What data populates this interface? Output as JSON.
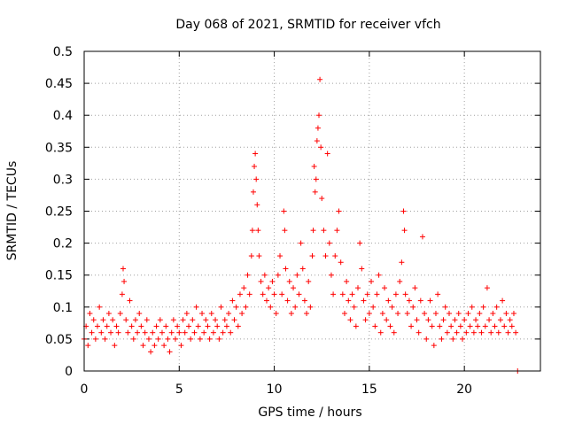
{
  "chart_data": {
    "type": "scatter",
    "title": "Day 068 of 2021, SRMTID for receiver vfch",
    "xlabel": "GPS time / hours",
    "ylabel": "SRMTID / TECUs",
    "xlim": [
      0,
      24
    ],
    "ylim": [
      0,
      0.5
    ],
    "grid": true,
    "marker": "+",
    "color": "#ff0000",
    "xticks": [
      0,
      5,
      10,
      15,
      20
    ],
    "xtick_labels": [
      "0",
      "5",
      "10",
      "15",
      "20"
    ],
    "yticks": [
      0,
      0.05,
      0.1,
      0.15,
      0.2,
      0.25,
      0.3,
      0.35,
      0.4,
      0.45,
      0.5
    ],
    "ytick_labels": [
      "0",
      "0.05",
      "0.1",
      "0.15",
      "0.2",
      "0.25",
      "0.3",
      "0.35",
      "0.4",
      "0.45",
      "0.5"
    ],
    "series": [
      {
        "name": "SRMTID",
        "points": [
          [
            0.0,
            0.05
          ],
          [
            0.1,
            0.07
          ],
          [
            0.2,
            0.04
          ],
          [
            0.3,
            0.09
          ],
          [
            0.4,
            0.06
          ],
          [
            0.5,
            0.08
          ],
          [
            0.6,
            0.05
          ],
          [
            0.7,
            0.07
          ],
          [
            0.8,
            0.1
          ],
          [
            0.9,
            0.06
          ],
          [
            1.0,
            0.08
          ],
          [
            1.1,
            0.05
          ],
          [
            1.2,
            0.07
          ],
          [
            1.3,
            0.09
          ],
          [
            1.4,
            0.06
          ],
          [
            1.5,
            0.08
          ],
          [
            1.6,
            0.04
          ],
          [
            1.7,
            0.07
          ],
          [
            1.8,
            0.06
          ],
          [
            1.9,
            0.09
          ],
          [
            2.0,
            0.12
          ],
          [
            2.05,
            0.16
          ],
          [
            2.1,
            0.14
          ],
          [
            2.2,
            0.08
          ],
          [
            2.3,
            0.06
          ],
          [
            2.4,
            0.11
          ],
          [
            2.5,
            0.07
          ],
          [
            2.6,
            0.05
          ],
          [
            2.7,
            0.08
          ],
          [
            2.8,
            0.06
          ],
          [
            2.9,
            0.09
          ],
          [
            3.0,
            0.07
          ],
          [
            3.1,
            0.04
          ],
          [
            3.2,
            0.06
          ],
          [
            3.3,
            0.08
          ],
          [
            3.4,
            0.05
          ],
          [
            3.5,
            0.03
          ],
          [
            3.6,
            0.06
          ],
          [
            3.7,
            0.04
          ],
          [
            3.8,
            0.07
          ],
          [
            3.9,
            0.05
          ],
          [
            4.0,
            0.08
          ],
          [
            4.1,
            0.06
          ],
          [
            4.2,
            0.04
          ],
          [
            4.3,
            0.07
          ],
          [
            4.4,
            0.05
          ],
          [
            4.5,
            0.03
          ],
          [
            4.6,
            0.06
          ],
          [
            4.7,
            0.08
          ],
          [
            4.8,
            0.05
          ],
          [
            4.9,
            0.07
          ],
          [
            5.0,
            0.06
          ],
          [
            5.1,
            0.04
          ],
          [
            5.2,
            0.08
          ],
          [
            5.3,
            0.06
          ],
          [
            5.4,
            0.09
          ],
          [
            5.5,
            0.07
          ],
          [
            5.6,
            0.05
          ],
          [
            5.7,
            0.08
          ],
          [
            5.8,
            0.06
          ],
          [
            5.9,
            0.1
          ],
          [
            6.0,
            0.07
          ],
          [
            6.1,
            0.05
          ],
          [
            6.2,
            0.09
          ],
          [
            6.3,
            0.06
          ],
          [
            6.4,
            0.08
          ],
          [
            6.5,
            0.07
          ],
          [
            6.6,
            0.05
          ],
          [
            6.7,
            0.09
          ],
          [
            6.8,
            0.06
          ],
          [
            6.9,
            0.08
          ],
          [
            7.0,
            0.07
          ],
          [
            7.1,
            0.05
          ],
          [
            7.2,
            0.1
          ],
          [
            7.3,
            0.06
          ],
          [
            7.4,
            0.08
          ],
          [
            7.5,
            0.07
          ],
          [
            7.6,
            0.09
          ],
          [
            7.7,
            0.06
          ],
          [
            7.8,
            0.11
          ],
          [
            7.9,
            0.08
          ],
          [
            8.0,
            0.1
          ],
          [
            8.1,
            0.07
          ],
          [
            8.2,
            0.12
          ],
          [
            8.3,
            0.09
          ],
          [
            8.4,
            0.13
          ],
          [
            8.5,
            0.1
          ],
          [
            8.6,
            0.15
          ],
          [
            8.7,
            0.12
          ],
          [
            8.8,
            0.18
          ],
          [
            8.85,
            0.22
          ],
          [
            8.9,
            0.28
          ],
          [
            8.95,
            0.32
          ],
          [
            9.0,
            0.34
          ],
          [
            9.05,
            0.3
          ],
          [
            9.1,
            0.26
          ],
          [
            9.15,
            0.22
          ],
          [
            9.2,
            0.18
          ],
          [
            9.3,
            0.14
          ],
          [
            9.4,
            0.12
          ],
          [
            9.5,
            0.15
          ],
          [
            9.6,
            0.11
          ],
          [
            9.7,
            0.13
          ],
          [
            9.8,
            0.1
          ],
          [
            9.9,
            0.14
          ],
          [
            10.0,
            0.12
          ],
          [
            10.1,
            0.09
          ],
          [
            10.2,
            0.15
          ],
          [
            10.3,
            0.18
          ],
          [
            10.4,
            0.12
          ],
          [
            10.5,
            0.25
          ],
          [
            10.55,
            0.22
          ],
          [
            10.6,
            0.16
          ],
          [
            10.7,
            0.11
          ],
          [
            10.8,
            0.14
          ],
          [
            10.9,
            0.09
          ],
          [
            11.0,
            0.13
          ],
          [
            11.1,
            0.1
          ],
          [
            11.2,
            0.15
          ],
          [
            11.3,
            0.12
          ],
          [
            11.4,
            0.2
          ],
          [
            11.5,
            0.16
          ],
          [
            11.6,
            0.11
          ],
          [
            11.7,
            0.09
          ],
          [
            11.8,
            0.14
          ],
          [
            11.9,
            0.1
          ],
          [
            12.0,
            0.18
          ],
          [
            12.05,
            0.22
          ],
          [
            12.1,
            0.32
          ],
          [
            12.15,
            0.28
          ],
          [
            12.2,
            0.3
          ],
          [
            12.25,
            0.36
          ],
          [
            12.3,
            0.38
          ],
          [
            12.35,
            0.4
          ],
          [
            12.4,
            0.456
          ],
          [
            12.45,
            0.35
          ],
          [
            12.5,
            0.27
          ],
          [
            12.6,
            0.22
          ],
          [
            12.7,
            0.18
          ],
          [
            12.8,
            0.34
          ],
          [
            12.9,
            0.2
          ],
          [
            13.0,
            0.15
          ],
          [
            13.1,
            0.12
          ],
          [
            13.2,
            0.18
          ],
          [
            13.3,
            0.22
          ],
          [
            13.4,
            0.25
          ],
          [
            13.5,
            0.17
          ],
          [
            13.6,
            0.12
          ],
          [
            13.7,
            0.09
          ],
          [
            13.8,
            0.14
          ],
          [
            13.9,
            0.11
          ],
          [
            14.0,
            0.08
          ],
          [
            14.1,
            0.12
          ],
          [
            14.2,
            0.1
          ],
          [
            14.3,
            0.07
          ],
          [
            14.4,
            0.13
          ],
          [
            14.5,
            0.2
          ],
          [
            14.6,
            0.16
          ],
          [
            14.7,
            0.11
          ],
          [
            14.8,
            0.08
          ],
          [
            14.9,
            0.12
          ],
          [
            15.0,
            0.09
          ],
          [
            15.1,
            0.14
          ],
          [
            15.2,
            0.1
          ],
          [
            15.3,
            0.07
          ],
          [
            15.4,
            0.12
          ],
          [
            15.5,
            0.15
          ],
          [
            15.6,
            0.06
          ],
          [
            15.7,
            0.09
          ],
          [
            15.8,
            0.13
          ],
          [
            15.9,
            0.08
          ],
          [
            16.0,
            0.11
          ],
          [
            16.1,
            0.07
          ],
          [
            16.2,
            0.1
          ],
          [
            16.3,
            0.06
          ],
          [
            16.4,
            0.12
          ],
          [
            16.5,
            0.09
          ],
          [
            16.6,
            0.14
          ],
          [
            16.7,
            0.17
          ],
          [
            16.8,
            0.25
          ],
          [
            16.85,
            0.22
          ],
          [
            16.9,
            0.12
          ],
          [
            17.0,
            0.09
          ],
          [
            17.1,
            0.11
          ],
          [
            17.2,
            0.07
          ],
          [
            17.3,
            0.1
          ],
          [
            17.4,
            0.13
          ],
          [
            17.5,
            0.08
          ],
          [
            17.6,
            0.06
          ],
          [
            17.7,
            0.11
          ],
          [
            17.8,
            0.21
          ],
          [
            17.9,
            0.09
          ],
          [
            18.0,
            0.05
          ],
          [
            18.1,
            0.08
          ],
          [
            18.2,
            0.11
          ],
          [
            18.3,
            0.07
          ],
          [
            18.4,
            0.04
          ],
          [
            18.5,
            0.09
          ],
          [
            18.6,
            0.12
          ],
          [
            18.7,
            0.07
          ],
          [
            18.8,
            0.05
          ],
          [
            18.9,
            0.08
          ],
          [
            19.0,
            0.1
          ],
          [
            19.1,
            0.06
          ],
          [
            19.2,
            0.09
          ],
          [
            19.3,
            0.07
          ],
          [
            19.4,
            0.05
          ],
          [
            19.5,
            0.08
          ],
          [
            19.6,
            0.06
          ],
          [
            19.7,
            0.09
          ],
          [
            19.8,
            0.07
          ],
          [
            19.9,
            0.05
          ],
          [
            20.0,
            0.08
          ],
          [
            20.1,
            0.06
          ],
          [
            20.2,
            0.09
          ],
          [
            20.3,
            0.07
          ],
          [
            20.4,
            0.1
          ],
          [
            20.5,
            0.06
          ],
          [
            20.6,
            0.08
          ],
          [
            20.7,
            0.07
          ],
          [
            20.8,
            0.09
          ],
          [
            20.9,
            0.06
          ],
          [
            21.0,
            0.1
          ],
          [
            21.1,
            0.07
          ],
          [
            21.2,
            0.13
          ],
          [
            21.3,
            0.08
          ],
          [
            21.4,
            0.06
          ],
          [
            21.5,
            0.09
          ],
          [
            21.6,
            0.07
          ],
          [
            21.7,
            0.1
          ],
          [
            21.8,
            0.06
          ],
          [
            21.9,
            0.08
          ],
          [
            22.0,
            0.11
          ],
          [
            22.1,
            0.07
          ],
          [
            22.2,
            0.09
          ],
          [
            22.3,
            0.06
          ],
          [
            22.4,
            0.08
          ],
          [
            22.5,
            0.07
          ],
          [
            22.6,
            0.09
          ],
          [
            22.7,
            0.06
          ],
          [
            22.8,
            0.0
          ]
        ]
      }
    ]
  }
}
